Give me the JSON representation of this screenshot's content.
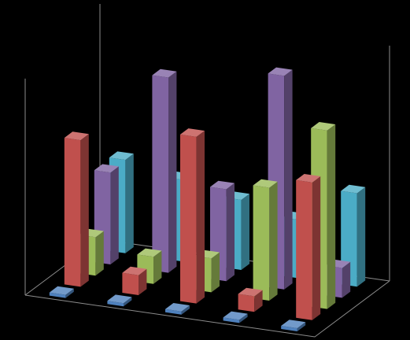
{
  "chart_data": {
    "type": "bar",
    "subtype": "3d-column",
    "title": "",
    "xlabel": "",
    "ylabel": "",
    "ylim": [
      0,
      10
    ],
    "grid": true,
    "legend": "none",
    "background": "#000000",
    "categories": [
      "",
      "",
      "",
      "",
      ""
    ],
    "series": [
      {
        "color": "#4bacc6",
        "values": [
          4.0,
          3.5,
          3.0,
          2.5,
          4.0
        ]
      },
      {
        "color": "#8064a2",
        "values": [
          4.0,
          8.5,
          4.0,
          9.3,
          1.3
        ]
      },
      {
        "color": "#9bbb59",
        "values": [
          1.7,
          1.2,
          1.5,
          5.0,
          7.9
        ]
      },
      {
        "color": "#c0504d",
        "values": [
          6.6,
          0.9,
          7.5,
          0.7,
          6.2
        ]
      },
      {
        "color": "#4f81bd",
        "values": [
          0.1,
          0.1,
          0.1,
          0.1,
          0.1
        ]
      }
    ]
  }
}
